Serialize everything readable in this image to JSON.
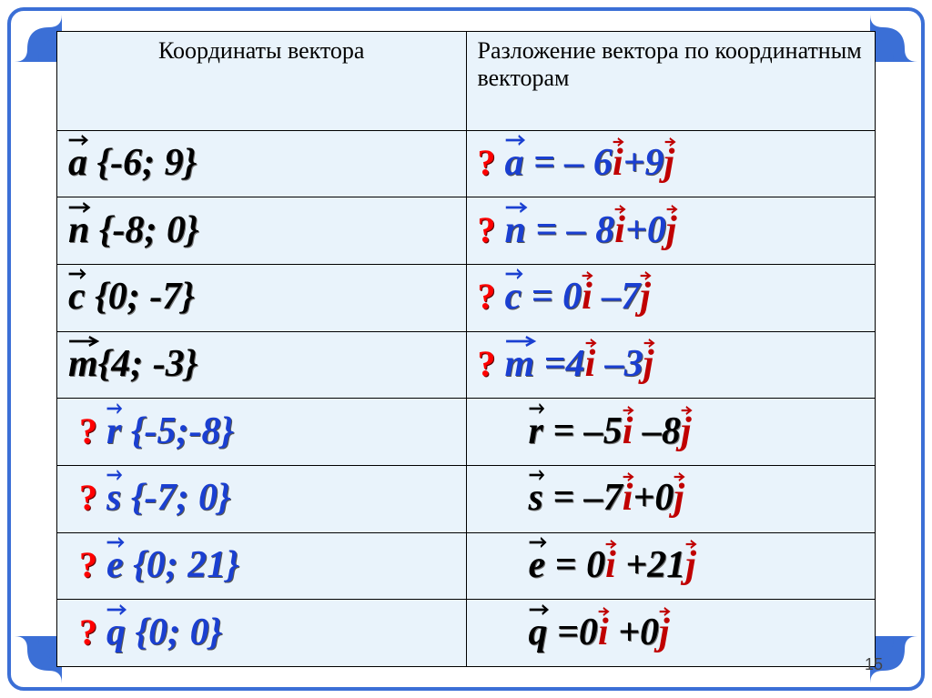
{
  "page_number": "15",
  "colors": {
    "frame": "#3b6fd6",
    "panel_bg": "#e9f3fb",
    "black": "#000000",
    "blue": "#1a3fd1",
    "red": "#c00000",
    "qmark": "#ff0000"
  },
  "headers": {
    "left": "Координаты вектора",
    "right": "Разложение вектора по координатным векторам"
  },
  "rows": [
    {
      "coord": {
        "q": false,
        "color": "black",
        "var": "a",
        "braces": " {-6; 9}"
      },
      "decomp": {
        "q": true,
        "color": "blue",
        "var": "a",
        "eq": " = – 6",
        "i": "i",
        "mid": "+9",
        "j": "j"
      }
    },
    {
      "coord": {
        "q": false,
        "color": "black",
        "var": "n",
        "braces": " {-8; 0}"
      },
      "decomp": {
        "q": true,
        "color": "blue",
        "var": "n",
        "eq": " = – 8",
        "i": "i",
        "mid": "+0",
        "j": "j"
      }
    },
    {
      "coord": {
        "q": false,
        "color": "black",
        "var": "c",
        "braces": " {0; -7}"
      },
      "decomp": {
        "q": true,
        "color": "blue",
        "var": "c",
        "eq": " = 0",
        "i": "i",
        "mid": " –7",
        "j": "j"
      }
    },
    {
      "coord": {
        "q": false,
        "color": "black",
        "var": "m",
        "braces": "{4; -3}"
      },
      "decomp": {
        "q": true,
        "color": "blue",
        "var": "m",
        "eq": " =4",
        "i": "i",
        "mid": " –3",
        "j": "j"
      }
    },
    {
      "coord": {
        "q": true,
        "color": "blue",
        "var": "r",
        "braces": " {-5;-8}"
      },
      "decomp": {
        "q": false,
        "color": "black",
        "var": "r",
        "eq": " = –5",
        "i": "i",
        "mid": " –8",
        "j": "j"
      }
    },
    {
      "coord": {
        "q": true,
        "color": "blue",
        "var": "s",
        "braces": " {-7; 0}"
      },
      "decomp": {
        "q": false,
        "color": "black",
        "var": "s",
        "eq": " = –7",
        "i": "i",
        "mid": "+0",
        "j": "j"
      }
    },
    {
      "coord": {
        "q": true,
        "color": "blue",
        "var": "e",
        "braces": " {0; 21}"
      },
      "decomp": {
        "q": false,
        "color": "black",
        "var": "e",
        "eq": " = 0",
        "i": "i",
        "mid": " +21",
        "j": "j"
      }
    },
    {
      "coord": {
        "q": true,
        "color": "blue",
        "var": "q",
        "braces": " {0; 0}"
      },
      "decomp": {
        "q": false,
        "color": "black",
        "var": "q",
        "eq": " =0",
        "i": "i",
        "mid": " +0",
        "j": "j"
      }
    }
  ]
}
